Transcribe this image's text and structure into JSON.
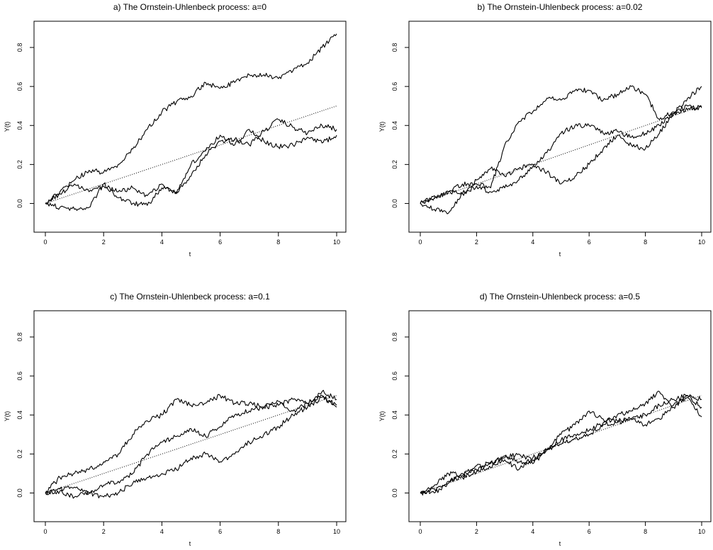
{
  "chart_data": [
    {
      "type": "line",
      "title": "a) The Ornstein-Uhlenbeck process: a=0",
      "xlabel": "t",
      "ylabel": "Y(t)",
      "xlim": [
        0,
        10
      ],
      "ylim": [
        -0.1,
        0.88
      ],
      "xticks": [
        "0",
        "2",
        "4",
        "6",
        "8",
        "10"
      ],
      "yticks": [
        "0.0",
        "0.2",
        "0.4",
        "0.6",
        "0.8"
      ],
      "mean_line": {
        "style": "dotted",
        "x": [
          0,
          10
        ],
        "y": [
          0,
          0.5
        ]
      },
      "series": [
        {
          "x": [
            0,
            0.5,
            1,
            1.5,
            2,
            2.5,
            3,
            3.5,
            4,
            4.5,
            5,
            5.5,
            6,
            6.5,
            7,
            7.5,
            8,
            8.5,
            9,
            9.5,
            10
          ],
          "y": [
            0,
            0.06,
            0.12,
            0.17,
            0.16,
            0.2,
            0.28,
            0.38,
            0.47,
            0.52,
            0.55,
            0.62,
            0.59,
            0.62,
            0.66,
            0.66,
            0.64,
            0.68,
            0.72,
            0.8,
            0.87
          ]
        },
        {
          "x": [
            0,
            0.5,
            1,
            1.5,
            2,
            2.5,
            3,
            3.5,
            4,
            4.5,
            5,
            5.5,
            6,
            6.5,
            7,
            7.5,
            8,
            8.5,
            9,
            9.5,
            10
          ],
          "y": [
            0,
            -0.02,
            -0.03,
            -0.02,
            0.1,
            0.03,
            0.0,
            -0.01,
            0.08,
            0.06,
            0.14,
            0.25,
            0.32,
            0.33,
            0.3,
            0.37,
            0.43,
            0.39,
            0.36,
            0.4,
            0.38
          ]
        },
        {
          "x": [
            0,
            0.5,
            1,
            1.5,
            2,
            2.5,
            3,
            3.5,
            4,
            4.5,
            5,
            5.5,
            6,
            6.5,
            7,
            7.5,
            8,
            8.5,
            9,
            9.5,
            10
          ],
          "y": [
            0,
            0.05,
            0.1,
            0.06,
            0.09,
            0.06,
            0.08,
            0.04,
            0.1,
            0.05,
            0.2,
            0.27,
            0.35,
            0.3,
            0.38,
            0.32,
            0.29,
            0.3,
            0.34,
            0.31,
            0.35
          ]
        }
      ]
    },
    {
      "type": "line",
      "title": "b) The Ornstein-Uhlenbeck process: a=0.02",
      "xlabel": "t",
      "ylabel": "Y(t)",
      "xlim": [
        0,
        10
      ],
      "ylim": [
        -0.1,
        0.88
      ],
      "xticks": [
        "0",
        "2",
        "4",
        "6",
        "8",
        "10"
      ],
      "yticks": [
        "0.0",
        "0.2",
        "0.4",
        "0.6",
        "0.8"
      ],
      "mean_line": {
        "style": "dotted",
        "x": [
          0,
          10
        ],
        "y": [
          0,
          0.5
        ]
      },
      "series": [
        {
          "x": [
            0,
            0.5,
            1,
            1.5,
            2,
            2.5,
            3,
            3.5,
            4,
            4.5,
            5,
            5.5,
            6,
            6.5,
            7,
            7.5,
            8,
            8.5,
            9,
            9.5,
            10
          ],
          "y": [
            0,
            0.03,
            0.06,
            0.1,
            0.1,
            0.08,
            0.3,
            0.42,
            0.47,
            0.54,
            0.53,
            0.58,
            0.58,
            0.53,
            0.56,
            0.6,
            0.56,
            0.43,
            0.47,
            0.5,
            0.49
          ]
        },
        {
          "x": [
            0,
            0.5,
            1,
            1.5,
            2,
            2.5,
            3,
            3.5,
            4,
            4.5,
            5,
            5.5,
            6,
            6.5,
            7,
            7.5,
            8,
            8.5,
            9,
            9.5,
            10
          ],
          "y": [
            0,
            -0.03,
            -0.05,
            0.05,
            0.12,
            0.18,
            0.14,
            0.18,
            0.2,
            0.16,
            0.1,
            0.14,
            0.2,
            0.28,
            0.35,
            0.3,
            0.28,
            0.36,
            0.46,
            0.54,
            0.6
          ]
        },
        {
          "x": [
            0,
            0.5,
            1,
            1.5,
            2,
            2.5,
            3,
            3.5,
            4,
            4.5,
            5,
            5.5,
            6,
            6.5,
            7,
            7.5,
            8,
            8.5,
            9,
            9.5,
            10
          ],
          "y": [
            0,
            0.04,
            0.06,
            0.05,
            0.09,
            0.06,
            0.08,
            0.12,
            0.19,
            0.26,
            0.36,
            0.4,
            0.4,
            0.36,
            0.37,
            0.34,
            0.36,
            0.4,
            0.46,
            0.48,
            0.5
          ]
        }
      ]
    },
    {
      "type": "line",
      "title": "c) The Ornstein-Uhlenbeck process: a=0.1",
      "xlabel": "t",
      "ylabel": "Y(t)",
      "xlim": [
        0,
        10
      ],
      "ylim": [
        -0.1,
        0.88
      ],
      "xticks": [
        "0",
        "2",
        "4",
        "6",
        "8",
        "10"
      ],
      "yticks": [
        "0.0",
        "0.2",
        "0.4",
        "0.6",
        "0.8"
      ],
      "mean_line": {
        "style": "dotted",
        "x": [
          0,
          10
        ],
        "y": [
          0,
          0.5
        ]
      },
      "series": [
        {
          "x": [
            0,
            0.5,
            1,
            1.5,
            2,
            2.5,
            3,
            3.5,
            4,
            4.5,
            5,
            5.5,
            6,
            6.5,
            7,
            7.5,
            8,
            8.5,
            9,
            9.5,
            10
          ],
          "y": [
            0,
            0.08,
            0.1,
            0.12,
            0.16,
            0.2,
            0.3,
            0.37,
            0.4,
            0.48,
            0.45,
            0.46,
            0.5,
            0.46,
            0.46,
            0.44,
            0.45,
            0.48,
            0.46,
            0.52,
            0.48
          ]
        },
        {
          "x": [
            0,
            0.5,
            1,
            1.5,
            2,
            2.5,
            3,
            3.5,
            4,
            4.5,
            5,
            5.5,
            6,
            6.5,
            7,
            7.5,
            8,
            8.5,
            9,
            9.5,
            10
          ],
          "y": [
            0,
            0.01,
            -0.02,
            0.0,
            0.04,
            0.06,
            0.1,
            0.2,
            0.26,
            0.29,
            0.33,
            0.29,
            0.34,
            0.4,
            0.42,
            0.44,
            0.47,
            0.42,
            0.46,
            0.5,
            0.44
          ]
        },
        {
          "x": [
            0,
            0.5,
            1,
            1.5,
            2,
            2.5,
            3,
            3.5,
            4,
            4.5,
            5,
            5.5,
            6,
            6.5,
            7,
            7.5,
            8,
            8.5,
            9,
            9.5,
            10
          ],
          "y": [
            0,
            0.02,
            0.03,
            0.0,
            -0.02,
            0.0,
            0.05,
            0.08,
            0.1,
            0.12,
            0.18,
            0.2,
            0.16,
            0.2,
            0.26,
            0.3,
            0.34,
            0.4,
            0.44,
            0.49,
            0.45
          ]
        }
      ]
    },
    {
      "type": "line",
      "title": "d) The Ornstein-Uhlenbeck process: a=0.5",
      "xlabel": "t",
      "ylabel": "Y(t)",
      "xlim": [
        0,
        10
      ],
      "ylim": [
        -0.1,
        0.88
      ],
      "xticks": [
        "0",
        "2",
        "4",
        "6",
        "8",
        "10"
      ],
      "yticks": [
        "0.0",
        "0.2",
        "0.4",
        "0.6",
        "0.8"
      ],
      "mean_line": {
        "style": "dotted",
        "x": [
          0,
          10
        ],
        "y": [
          0,
          0.5
        ]
      },
      "series": [
        {
          "x": [
            0,
            0.5,
            1,
            1.5,
            2,
            2.5,
            3,
            3.5,
            4,
            4.5,
            5,
            5.5,
            6,
            6.5,
            7,
            7.5,
            8,
            8.5,
            9,
            9.5,
            10
          ],
          "y": [
            0,
            0.04,
            0.1,
            0.09,
            0.14,
            0.15,
            0.19,
            0.16,
            0.15,
            0.22,
            0.3,
            0.35,
            0.42,
            0.38,
            0.37,
            0.38,
            0.4,
            0.45,
            0.48,
            0.5,
            0.48
          ]
        },
        {
          "x": [
            0,
            0.5,
            1,
            1.5,
            2,
            2.5,
            3,
            3.5,
            4,
            4.5,
            5,
            5.5,
            6,
            6.5,
            7,
            7.5,
            8,
            8.5,
            9,
            9.5,
            10
          ],
          "y": [
            0,
            0.0,
            0.05,
            0.1,
            0.12,
            0.16,
            0.17,
            0.12,
            0.18,
            0.22,
            0.27,
            0.3,
            0.32,
            0.36,
            0.4,
            0.42,
            0.46,
            0.52,
            0.44,
            0.5,
            0.44
          ]
        },
        {
          "x": [
            0,
            0.5,
            1,
            1.5,
            2,
            2.5,
            3,
            3.5,
            4,
            4.5,
            5,
            5.5,
            6,
            6.5,
            7,
            7.5,
            8,
            8.5,
            9,
            9.5,
            10
          ],
          "y": [
            0,
            0.02,
            0.06,
            0.08,
            0.11,
            0.13,
            0.18,
            0.2,
            0.17,
            0.22,
            0.25,
            0.28,
            0.3,
            0.35,
            0.36,
            0.38,
            0.35,
            0.38,
            0.45,
            0.49,
            0.39
          ]
        }
      ]
    }
  ]
}
